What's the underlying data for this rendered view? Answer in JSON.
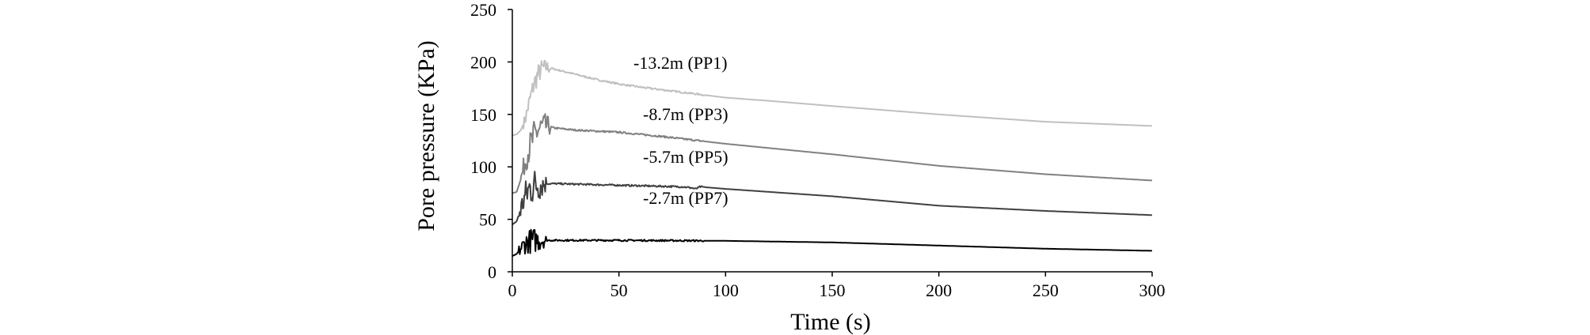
{
  "chart_data": {
    "type": "line",
    "xlabel": "Time (s)",
    "ylabel": "Pore pressure (KPa)",
    "xlim": [
      0,
      300
    ],
    "ylim": [
      0,
      250
    ],
    "xticks": [
      0,
      50,
      100,
      150,
      200,
      250,
      300
    ],
    "yticks": [
      0,
      50,
      100,
      150,
      200,
      250
    ],
    "grid": false,
    "series": [
      {
        "name": "-13.2m (PP1)",
        "color": "#c0c0c0",
        "noise_start": 5,
        "noise_end": 18,
        "noise_amp": 10,
        "points": [
          [
            0,
            130
          ],
          [
            2,
            131
          ],
          [
            4,
            135
          ],
          [
            6,
            145
          ],
          [
            8,
            162
          ],
          [
            10,
            178
          ],
          [
            12,
            188
          ],
          [
            14,
            194
          ],
          [
            16,
            195
          ],
          [
            18,
            194
          ],
          [
            20,
            193
          ],
          [
            30,
            188
          ],
          [
            40,
            183
          ],
          [
            50,
            179
          ],
          [
            60,
            176
          ],
          [
            80,
            171
          ],
          [
            100,
            166
          ],
          [
            120,
            163
          ],
          [
            150,
            158
          ],
          [
            200,
            150
          ],
          [
            250,
            143
          ],
          [
            300,
            139
          ]
        ]
      },
      {
        "name": "-8.7m (PP3)",
        "color": "#808080",
        "noise_start": 4,
        "noise_end": 18,
        "noise_amp": 16,
        "points": [
          [
            0,
            75
          ],
          [
            2,
            76
          ],
          [
            4,
            88
          ],
          [
            6,
            105
          ],
          [
            8,
            118
          ],
          [
            10,
            128
          ],
          [
            12,
            135
          ],
          [
            14,
            138
          ],
          [
            16,
            139
          ],
          [
            20,
            137
          ],
          [
            30,
            135
          ],
          [
            50,
            133
          ],
          [
            70,
            129
          ],
          [
            100,
            122
          ],
          [
            150,
            112
          ],
          [
            200,
            101
          ],
          [
            250,
            93
          ],
          [
            300,
            87
          ]
        ]
      },
      {
        "name": "-5.7m (PP5)",
        "color": "#404040",
        "noise_start": 3,
        "noise_end": 16,
        "noise_amp": 18,
        "points": [
          [
            0,
            45
          ],
          [
            2,
            48
          ],
          [
            4,
            60
          ],
          [
            6,
            72
          ],
          [
            8,
            79
          ],
          [
            10,
            82
          ],
          [
            12,
            83
          ],
          [
            16,
            84
          ],
          [
            20,
            84
          ],
          [
            40,
            83
          ],
          [
            60,
            82
          ],
          [
            80,
            81
          ],
          [
            84,
            80
          ],
          [
            86,
            79
          ],
          [
            88,
            81
          ],
          [
            100,
            79
          ],
          [
            150,
            72
          ],
          [
            200,
            63
          ],
          [
            250,
            58
          ],
          [
            300,
            54
          ]
        ]
      },
      {
        "name": "-2.7m (PP7)",
        "color": "#000000",
        "noise_start": 3,
        "noise_end": 16,
        "noise_amp": 12,
        "points": [
          [
            0,
            15
          ],
          [
            2,
            17
          ],
          [
            4,
            22
          ],
          [
            6,
            27
          ],
          [
            8,
            29
          ],
          [
            10,
            30
          ],
          [
            14,
            30
          ],
          [
            20,
            30
          ],
          [
            50,
            30
          ],
          [
            100,
            29.5
          ],
          [
            150,
            28
          ],
          [
            200,
            25
          ],
          [
            250,
            22
          ],
          [
            300,
            20
          ]
        ]
      }
    ]
  }
}
